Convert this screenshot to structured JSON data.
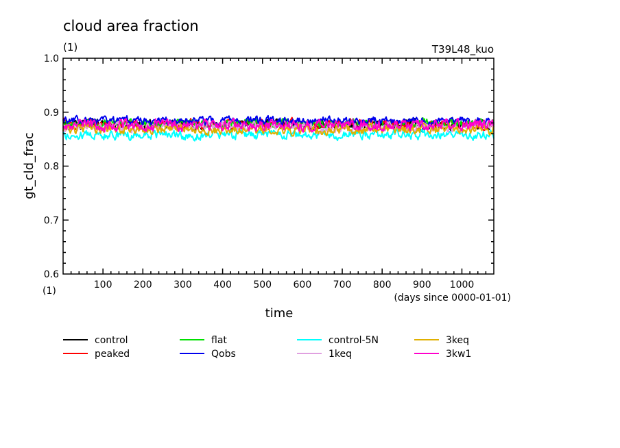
{
  "chart_data": {
    "type": "line",
    "title": "cloud area fraction",
    "title_units": "(1)",
    "run_label": "T39L48_kuo",
    "xlabel": "time",
    "xlabel_units": "(days since 0000-01-01)",
    "ylabel": "gt_cld_frac",
    "ylabel_units": "(1)",
    "xlim": [
      0,
      1080
    ],
    "ylim": [
      0.6,
      1.0
    ],
    "xticks": [
      100,
      200,
      300,
      400,
      500,
      600,
      700,
      800,
      900,
      1000
    ],
    "yticks": [
      "0.6",
      "0.7",
      "0.8",
      "0.9",
      "1.0"
    ],
    "grid": false,
    "legend_position": "bottom",
    "series": [
      {
        "name": "control",
        "color": "#000000",
        "mean": 0.877,
        "amp": 0.007
      },
      {
        "name": "peaked",
        "color": "#ff0000",
        "mean": 0.878,
        "amp": 0.007
      },
      {
        "name": "flat",
        "color": "#00e000",
        "mean": 0.878,
        "amp": 0.007
      },
      {
        "name": "Qobs",
        "color": "#0000ee",
        "mean": 0.884,
        "amp": 0.006
      },
      {
        "name": "control-5N",
        "color": "#00ffff",
        "mean": 0.858,
        "amp": 0.007
      },
      {
        "name": "1keq",
        "color": "#e0a0e0",
        "mean": 0.872,
        "amp": 0.007
      },
      {
        "name": "3keq",
        "color": "#e0b000",
        "mean": 0.868,
        "amp": 0.007
      },
      {
        "name": "3kw1",
        "color": "#ff00cc",
        "mean": 0.876,
        "amp": 0.008
      }
    ]
  }
}
